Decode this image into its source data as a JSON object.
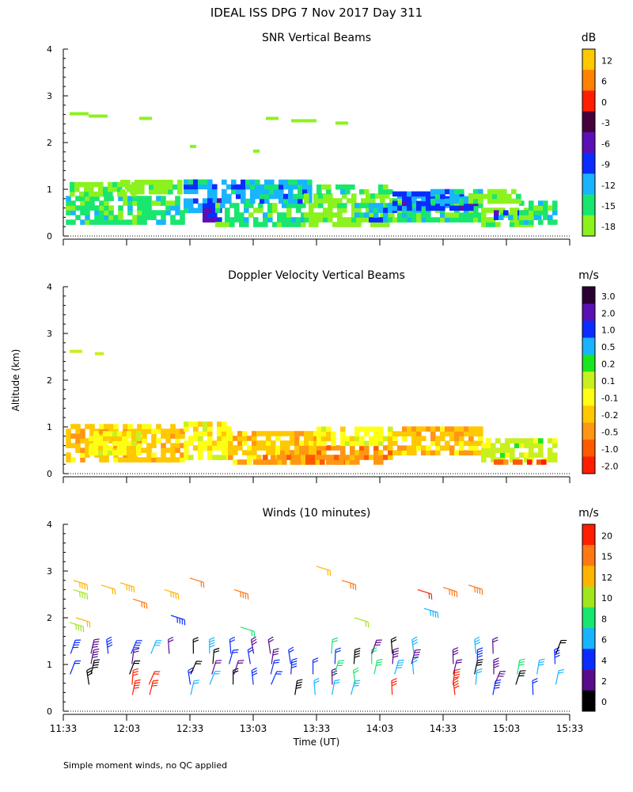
{
  "header": {
    "title": "IDEAL ISS DPG    7 Nov 2017 Day 311"
  },
  "footer": {
    "note": "Simple moment winds, no QC applied"
  },
  "shared_axes": {
    "ylabel": "Altitude (km)",
    "xlabel": "Time (UT)",
    "yticks": [
      "0",
      "1",
      "2",
      "3",
      "4"
    ],
    "xtick_labels": [
      "11:33",
      "12:03",
      "12:33",
      "13:03",
      "13:33",
      "14:03",
      "14:33",
      "15:03",
      "15:33"
    ]
  },
  "chart_data": [
    {
      "type": "heatmap",
      "title": "SNR Vertical Beams",
      "unit": "dB",
      "ylim": [
        0,
        4
      ],
      "colorbar": {
        "labels": [
          "12",
          "6",
          "0",
          "-3",
          "-6",
          "-9",
          "-12",
          "-15",
          "-18"
        ],
        "colors": [
          "#ffc800",
          "#ff8200",
          "#ff1e00",
          "#46003c",
          "#5a10b4",
          "#0a2cff",
          "#19b4ff",
          "#19e66e",
          "#8cf21e"
        ]
      },
      "regions": [
        {
          "t0": 0.02,
          "t1": 0.95,
          "h0": 0.25,
          "h1": 0.85,
          "c": 7
        },
        {
          "t0": 0.05,
          "t1": 0.6,
          "h0": 0.85,
          "h1": 1.1,
          "c": 8
        },
        {
          "t0": 0.45,
          "t1": 0.9,
          "h0": 0.9,
          "h1": 1.2,
          "c": 8
        },
        {
          "t0": 0.95,
          "t1": 1.2,
          "h0": 0.5,
          "h1": 1.15,
          "c": 6
        },
        {
          "t0": 1.1,
          "t1": 1.25,
          "h0": 0.3,
          "h1": 0.8,
          "c": 5
        },
        {
          "t0": 1.2,
          "t1": 1.9,
          "h0": 0.2,
          "h1": 0.7,
          "c": 7
        },
        {
          "t0": 1.25,
          "t1": 1.95,
          "h0": 0.7,
          "h1": 1.15,
          "c": 6
        },
        {
          "t0": 1.9,
          "t1": 2.6,
          "h0": 0.2,
          "h1": 0.9,
          "c": 8
        },
        {
          "t0": 2.0,
          "t1": 2.6,
          "h0": 0.9,
          "h1": 1.1,
          "c": 7
        },
        {
          "t0": 2.3,
          "t1": 2.9,
          "h0": 0.3,
          "h1": 0.7,
          "c": 6
        },
        {
          "t0": 2.6,
          "t1": 3.3,
          "h0": 0.3,
          "h1": 0.9,
          "c": 7
        },
        {
          "t0": 2.6,
          "t1": 3.25,
          "h0": 0.55,
          "h1": 0.95,
          "c": 5
        },
        {
          "t0": 2.9,
          "t1": 3.3,
          "h0": 0.7,
          "h1": 1.0,
          "c": 6
        },
        {
          "t0": 3.3,
          "t1": 3.7,
          "h0": 0.2,
          "h1": 0.6,
          "c": 8
        },
        {
          "t0": 3.4,
          "t1": 3.75,
          "h0": 0.35,
          "h1": 0.55,
          "c": 5
        },
        {
          "t0": 3.6,
          "t1": 3.9,
          "h0": 0.25,
          "h1": 0.7,
          "c": 7
        },
        {
          "t0": 3.2,
          "t1": 3.6,
          "h0": 0.7,
          "h1": 1.0,
          "c": 8
        }
      ],
      "specks": [
        {
          "t0": 0.05,
          "t1": 0.2,
          "h": 2.6,
          "c": 8
        },
        {
          "t0": 0.2,
          "t1": 0.35,
          "h": 2.55,
          "c": 8
        },
        {
          "t0": 0.6,
          "t1": 0.7,
          "h": 2.5,
          "c": 8
        },
        {
          "t0": 1.6,
          "t1": 1.7,
          "h": 2.5,
          "c": 8
        },
        {
          "t0": 1.8,
          "t1": 2.0,
          "h": 2.45,
          "c": 8
        },
        {
          "t0": 2.15,
          "t1": 2.25,
          "h": 2.4,
          "c": 8
        },
        {
          "t0": 1.0,
          "t1": 1.05,
          "h": 1.9,
          "c": 8
        },
        {
          "t0": 1.5,
          "t1": 1.55,
          "h": 1.8,
          "c": 8
        }
      ]
    },
    {
      "type": "heatmap",
      "title": "Doppler Velocity Vertical Beams",
      "unit": "m/s",
      "ylim": [
        0,
        4
      ],
      "colorbar": {
        "labels": [
          "3.0",
          "2.0",
          "1.0",
          "0.5",
          "0.2",
          "0.1",
          "-0.1",
          "-0.2",
          "-0.5",
          "-1.0",
          "-2.0"
        ],
        "colors": [
          "#2a0032",
          "#5a10b4",
          "#0a2cff",
          "#19b4ff",
          "#19e61e",
          "#c8f01e",
          "#ffff14",
          "#ffc800",
          "#ff9614",
          "#ff5a00",
          "#ff1e00"
        ]
      },
      "regions": [
        {
          "t0": 0.02,
          "t1": 0.95,
          "h0": 0.25,
          "h1": 1.05,
          "c": 7
        },
        {
          "t0": 0.2,
          "t1": 0.6,
          "h0": 0.4,
          "h1": 0.9,
          "c": 6
        },
        {
          "t0": 0.95,
          "t1": 1.3,
          "h0": 0.3,
          "h1": 1.1,
          "c": 6
        },
        {
          "t0": 1.3,
          "t1": 2.0,
          "h0": 0.2,
          "h1": 0.9,
          "c": 7
        },
        {
          "t0": 2.0,
          "t1": 2.6,
          "h0": 0.2,
          "h1": 0.6,
          "c": 8
        },
        {
          "t0": 2.0,
          "t1": 2.6,
          "h0": 0.6,
          "h1": 1.0,
          "c": 6
        },
        {
          "t0": 2.6,
          "t1": 3.3,
          "h0": 0.4,
          "h1": 1.0,
          "c": 7
        },
        {
          "t0": 3.3,
          "t1": 3.9,
          "h0": 0.25,
          "h1": 0.7,
          "c": 5
        },
        {
          "t0": 3.4,
          "t1": 3.8,
          "h0": 0.2,
          "h1": 0.3,
          "c": 9
        },
        {
          "t0": 1.5,
          "t1": 2.2,
          "h0": 0.2,
          "h1": 0.35,
          "c": 8
        }
      ],
      "specks": [
        {
          "t0": 0.05,
          "t1": 0.15,
          "h": 2.6,
          "c": 5
        },
        {
          "t0": 0.25,
          "t1": 0.32,
          "h": 2.55,
          "c": 5
        }
      ]
    },
    {
      "type": "wind_barbs",
      "title": "Winds (10 minutes)",
      "unit": "m/s",
      "ylim": [
        0,
        4
      ],
      "colorbar": {
        "labels": [
          "20",
          "15",
          "12",
          "10",
          "8",
          "6",
          "4",
          "2",
          "0"
        ],
        "colors": [
          "#ff1e00",
          "#ff7814",
          "#ffb400",
          "#a0e61e",
          "#19e66e",
          "#19b4ff",
          "#0a2cff",
          "#5a0a8c",
          "#000000"
        ]
      },
      "barb_upper": [
        {
          "t": 0.08,
          "h": 2.8,
          "c": 2
        },
        {
          "t": 0.08,
          "h": 2.6,
          "c": 3
        },
        {
          "t": 0.3,
          "h": 2.7,
          "c": 2
        },
        {
          "t": 0.45,
          "h": 2.75,
          "c": 2
        },
        {
          "t": 0.55,
          "h": 2.4,
          "c": 1
        },
        {
          "t": 0.8,
          "h": 2.6,
          "c": 2
        },
        {
          "t": 1.0,
          "h": 2.85,
          "c": 1
        },
        {
          "t": 1.35,
          "h": 2.6,
          "c": 1
        },
        {
          "t": 2.0,
          "h": 3.1,
          "c": 2
        },
        {
          "t": 2.2,
          "h": 2.8,
          "c": 1
        },
        {
          "t": 2.3,
          "h": 2.0,
          "c": 3
        },
        {
          "t": 2.8,
          "h": 2.6,
          "c": 0
        },
        {
          "t": 3.0,
          "h": 2.65,
          "c": 1
        },
        {
          "t": 3.2,
          "h": 2.7,
          "c": 1
        },
        {
          "t": 1.4,
          "h": 1.8,
          "c": 4
        },
        {
          "t": 0.05,
          "h": 1.9,
          "c": 3
        },
        {
          "t": 0.1,
          "h": 2.0,
          "c": 2
        },
        {
          "t": 0.85,
          "h": 2.05,
          "c": 6
        },
        {
          "t": 2.85,
          "h": 2.2,
          "c": 5
        }
      ]
    }
  ]
}
